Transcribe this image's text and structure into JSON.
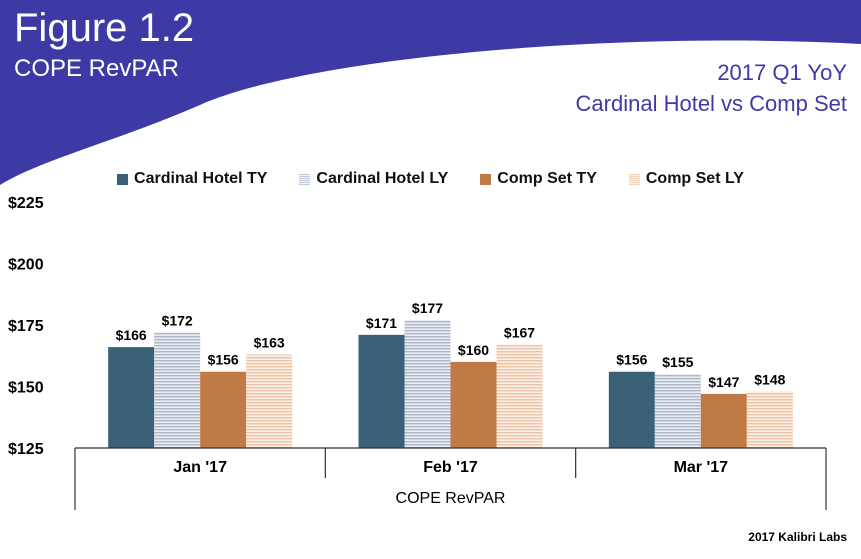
{
  "figure": {
    "title": "Figure 1.2",
    "subtitle": "COPE RevPAR",
    "header_line1": "2017 Q1 YoY",
    "header_line2": "Cardinal Hotel vs Comp Set",
    "credit": "2017 Kalibri Labs",
    "banner_color": "#3d3aa6"
  },
  "chart_data": {
    "type": "bar",
    "categories": [
      "Jan '17",
      "Feb '17",
      "Mar '17"
    ],
    "xlabel": "COPE RevPAR",
    "ylabel": "",
    "ylim": [
      125,
      225
    ],
    "yticks": [
      125,
      150,
      175,
      200,
      225
    ],
    "ytick_labels": [
      "$125",
      "$150",
      "$175",
      "$200",
      "$225"
    ],
    "legend_position": "top",
    "grid": false,
    "series": [
      {
        "name": "Cardinal Hotel TY",
        "color": "#3a6178",
        "pattern": "solid",
        "values": [
          166,
          171,
          156
        ],
        "labels": [
          "$166",
          "$171",
          "$156"
        ]
      },
      {
        "name": "Cardinal Hotel LY",
        "color": "#c3cad7",
        "pattern": "striped",
        "values": [
          172,
          177,
          155
        ],
        "labels": [
          "$172",
          "$177",
          "$155"
        ]
      },
      {
        "name": "Comp Set TY",
        "color": "#c07a45",
        "pattern": "solid",
        "values": [
          156,
          160,
          147
        ],
        "labels": [
          "$156",
          "$160",
          "$147"
        ]
      },
      {
        "name": "Comp Set LY",
        "color": "#f1d3bd",
        "pattern": "striped",
        "values": [
          163,
          167,
          148
        ],
        "labels": [
          "$163",
          "$167",
          "$148"
        ]
      }
    ]
  }
}
